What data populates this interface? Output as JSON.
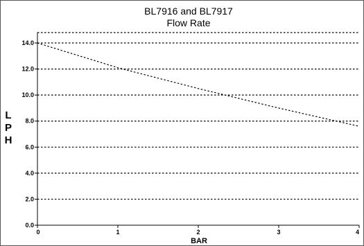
{
  "chart_data": {
    "type": "line",
    "title": "BL7916 and BL7917",
    "subtitle": "Flow Rate",
    "xlabel": "BAR",
    "ylabel": "LPH",
    "xlim": [
      0,
      4
    ],
    "ylim": [
      0,
      14.8
    ],
    "x_ticks": [
      0,
      1,
      2,
      3,
      4
    ],
    "x_tick_labels": [
      "0",
      "1",
      "2",
      "3",
      "4"
    ],
    "y_ticks": [
      0,
      2,
      4,
      6,
      8,
      10,
      12,
      14
    ],
    "y_tick_labels": [
      "0.0",
      "2.0",
      "4.0",
      "6.0",
      "8.0",
      "10.0",
      "12.0",
      "14.0"
    ],
    "grid": true,
    "line_style": "dotted",
    "line_color": "#000000",
    "series": [
      {
        "x": [
          0,
          1,
          2,
          3,
          4
        ],
        "values": [
          14.0,
          12.1,
          10.5,
          9.0,
          7.6
        ]
      }
    ]
  }
}
